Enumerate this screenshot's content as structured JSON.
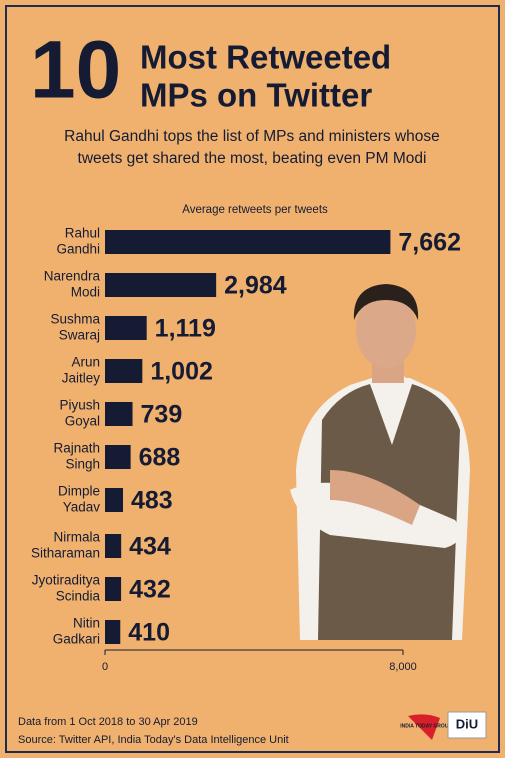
{
  "chart_data": {
    "type": "bar",
    "orientation": "horizontal",
    "title_number": "10",
    "title_lines": [
      "Most Retweeted",
      "MPs on Twitter"
    ],
    "subtitle_lines": [
      "Rahul Gandhi tops the list of MPs and ministers whose",
      "tweets get shared the most, beating even PM Modi"
    ],
    "axis_label": "Average retweets per tweets",
    "categories": [
      [
        "Rahul",
        "Gandhi"
      ],
      [
        "Narendra",
        "Modi"
      ],
      [
        "Sushma",
        "Swaraj"
      ],
      [
        "Arun",
        "Jaitley"
      ],
      [
        "Piyush",
        "Goyal"
      ],
      [
        "Rajnath",
        "Singh"
      ],
      [
        "Dimple",
        "Yadav"
      ],
      [
        "Nirmala",
        "Sitharaman"
      ],
      [
        "Jyotiraditya",
        "Scindia"
      ],
      [
        "Nitin",
        "Gadkari"
      ]
    ],
    "values": [
      7662,
      2984,
      1119,
      1002,
      739,
      688,
      483,
      434,
      432,
      410
    ],
    "value_labels": [
      "7,662",
      "2,984",
      "1,119",
      "1,002",
      "739",
      "688",
      "483",
      "434",
      "432",
      "410"
    ],
    "color": "#141b33",
    "xlim": [
      0,
      8000
    ],
    "xticks": [
      0,
      {
        "value": 8000,
        "label": "8,000"
      }
    ],
    "footer_lines": [
      "Data from 1 Oct 2018 to 30 Apr 2019",
      "Source: Twitter API, India Today's Data Intelligence Unit"
    ],
    "logos": [
      "INDIA TODAY GROUP",
      "DiU"
    ]
  }
}
